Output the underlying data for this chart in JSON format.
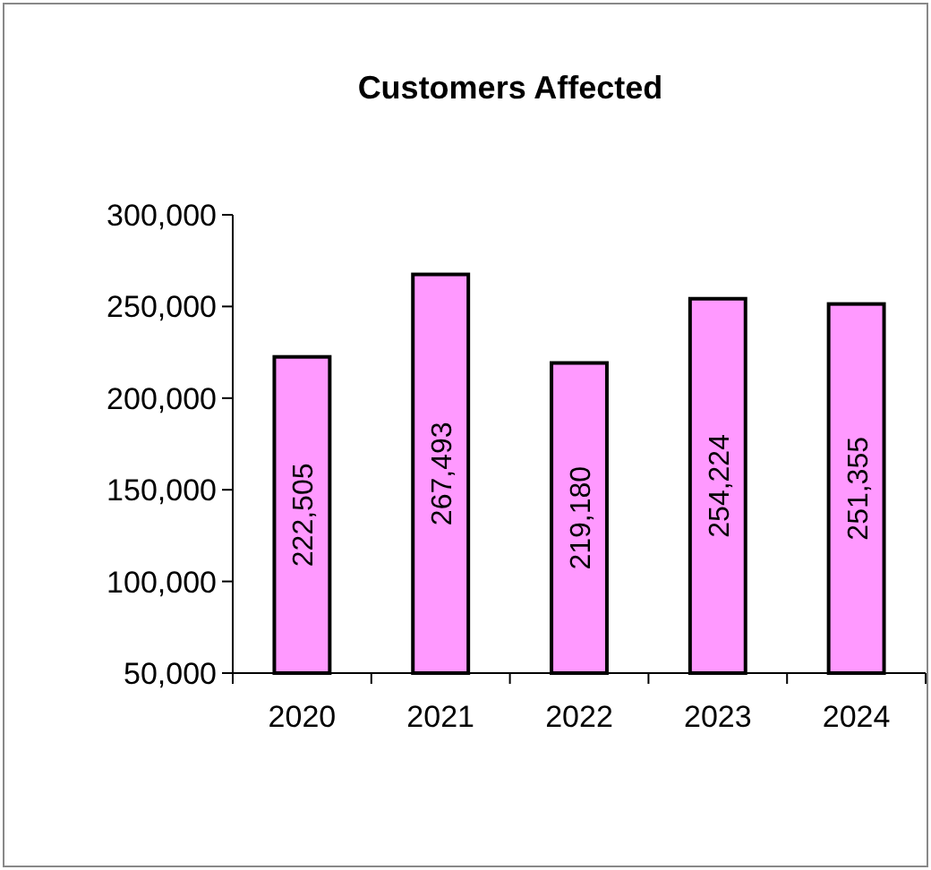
{
  "chart_data": {
    "type": "bar",
    "title": "Customers Affected",
    "categories": [
      "2020",
      "2021",
      "2022",
      "2023",
      "2024"
    ],
    "values": [
      222505,
      267493,
      219180,
      254224,
      251355
    ],
    "color": "#ff99ff",
    "ylim": [
      50000,
      300000
    ],
    "yticks": [
      {
        "value": 50000,
        "label": "50,000"
      },
      {
        "value": 100000,
        "label": "100,000"
      },
      {
        "value": 150000,
        "label": "150,000"
      },
      {
        "value": 200000,
        "label": "200,000"
      },
      {
        "value": 250000,
        "label": "250,000"
      },
      {
        "value": 300000,
        "label": "300,000"
      }
    ],
    "value_labels": [
      "222,505",
      "267,493",
      "219,180",
      "254,224",
      "251,355"
    ]
  }
}
